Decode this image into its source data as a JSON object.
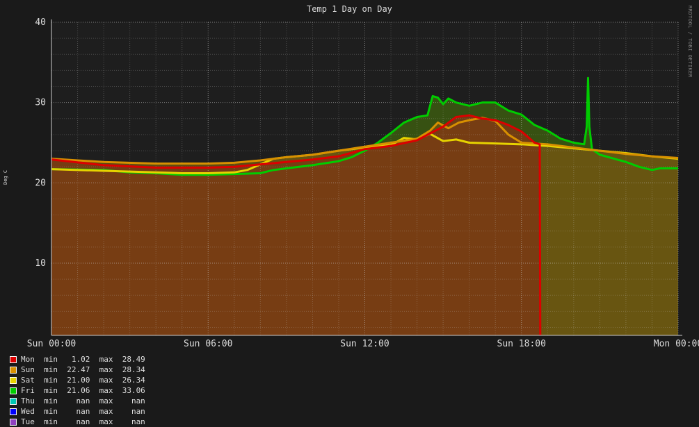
{
  "chart_data": {
    "type": "area",
    "title": "Temp 1 Day on Day",
    "ylabel": "Deg C",
    "watermark": "RRDTOOL / TOBI OETIKER",
    "ylim": [
      1,
      40
    ],
    "yticks": [
      10,
      20,
      30,
      40
    ],
    "grid": true,
    "xlim": [
      0,
      24
    ],
    "xticks": [
      {
        "h": 0,
        "label": "Sun 00:00"
      },
      {
        "h": 6,
        "label": "Sun 06:00"
      },
      {
        "h": 12,
        "label": "Sun 12:00"
      },
      {
        "h": 18,
        "label": "Sun 18:00"
      },
      {
        "h": 24,
        "label": "Mon 00:00"
      }
    ],
    "series": [
      {
        "name": "Fri",
        "color": "#00cc00",
        "fill": "#3c5a10",
        "min": "21.06",
        "max": "33.06",
        "points": [
          [
            0,
            21.7
          ],
          [
            2,
            21.6
          ],
          [
            3,
            21.3
          ],
          [
            4,
            21.2
          ],
          [
            5,
            21.0
          ],
          [
            6,
            21.0
          ],
          [
            7,
            21.1
          ],
          [
            8,
            21.2
          ],
          [
            8.5,
            21.6
          ],
          [
            9,
            21.8
          ],
          [
            10,
            22.2
          ],
          [
            11,
            22.7
          ],
          [
            11.5,
            23.2
          ],
          [
            12,
            24.0
          ],
          [
            12.5,
            25.0
          ],
          [
            13,
            26.2
          ],
          [
            13.5,
            27.5
          ],
          [
            14,
            28.2
          ],
          [
            14.4,
            28.4
          ],
          [
            14.6,
            30.8
          ],
          [
            14.8,
            30.6
          ],
          [
            15,
            29.8
          ],
          [
            15.2,
            30.5
          ],
          [
            15.5,
            30.0
          ],
          [
            16,
            29.6
          ],
          [
            16.5,
            30.0
          ],
          [
            17,
            30.0
          ],
          [
            17.5,
            29.0
          ],
          [
            18,
            28.5
          ],
          [
            18.5,
            27.2
          ],
          [
            19,
            26.5
          ],
          [
            19.5,
            25.5
          ],
          [
            20,
            25.0
          ],
          [
            20.4,
            24.8
          ],
          [
            20.5,
            27.0
          ],
          [
            20.55,
            33.06
          ],
          [
            20.6,
            27.0
          ],
          [
            20.7,
            24.2
          ],
          [
            21,
            23.5
          ],
          [
            22,
            22.6
          ],
          [
            22.5,
            22.0
          ],
          [
            23,
            21.6
          ],
          [
            23.3,
            21.8
          ],
          [
            24,
            21.8
          ]
        ]
      },
      {
        "name": "Sat",
        "color": "#e6d300",
        "fill": "#6a6215",
        "min": "21.00",
        "max": "26.34",
        "points": [
          [
            0,
            21.7
          ],
          [
            1,
            21.6
          ],
          [
            2,
            21.5
          ],
          [
            3,
            21.4
          ],
          [
            4,
            21.3
          ],
          [
            5,
            21.2
          ],
          [
            6,
            21.2
          ],
          [
            7,
            21.3
          ],
          [
            7.5,
            21.6
          ],
          [
            8,
            22.3
          ],
          [
            8.5,
            23.0
          ],
          [
            9,
            23.2
          ],
          [
            10,
            23.5
          ],
          [
            11,
            24.0
          ],
          [
            12,
            24.4
          ],
          [
            13,
            24.7
          ],
          [
            13.5,
            25.6
          ],
          [
            14,
            25.4
          ],
          [
            14.5,
            26.1
          ],
          [
            15,
            25.2
          ],
          [
            15.5,
            25.4
          ],
          [
            16,
            25.0
          ],
          [
            17,
            24.9
          ],
          [
            18,
            24.8
          ],
          [
            19,
            24.6
          ],
          [
            20,
            24.3
          ],
          [
            21,
            24.0
          ],
          [
            22,
            23.7
          ],
          [
            23,
            23.3
          ],
          [
            24,
            23.0
          ]
        ]
      },
      {
        "name": "Sun",
        "color": "#d89000",
        "fill": "#6a5410",
        "min": "22.47",
        "max": "28.34",
        "points": [
          [
            0,
            23.0
          ],
          [
            2,
            22.6
          ],
          [
            4,
            22.4
          ],
          [
            6,
            22.4
          ],
          [
            7,
            22.5
          ],
          [
            8,
            22.8
          ],
          [
            9,
            23.2
          ],
          [
            10,
            23.5
          ],
          [
            11,
            24.0
          ],
          [
            12,
            24.5
          ],
          [
            13,
            25.0
          ],
          [
            14,
            25.5
          ],
          [
            14.5,
            26.5
          ],
          [
            14.8,
            27.5
          ],
          [
            15.2,
            26.8
          ],
          [
            15.6,
            27.5
          ],
          [
            16,
            27.8
          ],
          [
            16.5,
            28.1
          ],
          [
            17,
            27.7
          ],
          [
            17.5,
            26.0
          ],
          [
            18,
            25.0
          ],
          [
            19,
            24.8
          ],
          [
            20,
            24.4
          ],
          [
            21,
            24.0
          ],
          [
            22,
            23.6
          ],
          [
            23,
            23.3
          ],
          [
            24,
            23.1
          ]
        ]
      },
      {
        "name": "Mon",
        "color": "#dd0000",
        "fill": "#7a3a14",
        "min": "1.02",
        "max": "28.49",
        "points": [
          [
            0,
            22.9
          ],
          [
            2,
            22.2
          ],
          [
            4,
            21.9
          ],
          [
            6,
            21.9
          ],
          [
            7,
            22.0
          ],
          [
            8,
            22.3
          ],
          [
            9,
            22.6
          ],
          [
            10,
            22.9
          ],
          [
            11,
            23.3
          ],
          [
            12,
            24.2
          ],
          [
            13,
            24.6
          ],
          [
            14,
            25.3
          ],
          [
            15,
            27.0
          ],
          [
            15.5,
            28.2
          ],
          [
            16,
            28.4
          ],
          [
            16.5,
            28.0
          ],
          [
            17,
            27.8
          ],
          [
            17.5,
            27.2
          ],
          [
            18,
            26.4
          ],
          [
            18.5,
            25.0
          ],
          [
            18.7,
            24.8
          ],
          [
            18.72,
            1.02
          ]
        ]
      }
    ],
    "legend": [
      {
        "name": "Mon",
        "color": "#dd0000",
        "min": "1.02",
        "max": "28.49"
      },
      {
        "name": "Sun",
        "color": "#d89000",
        "min": "22.47",
        "max": "28.34"
      },
      {
        "name": "Sat",
        "color": "#e6d300",
        "min": "21.00",
        "max": "26.34"
      },
      {
        "name": "Fri",
        "color": "#00cc00",
        "min": "21.06",
        "max": "33.06"
      },
      {
        "name": "Thu",
        "color": "#00c8b4",
        "min": "nan",
        "max": "nan"
      },
      {
        "name": "Wed",
        "color": "#0000ff",
        "min": "nan",
        "max": "nan"
      },
      {
        "name": "Tue",
        "color": "#9040c0",
        "min": "nan",
        "max": "nan"
      }
    ]
  }
}
